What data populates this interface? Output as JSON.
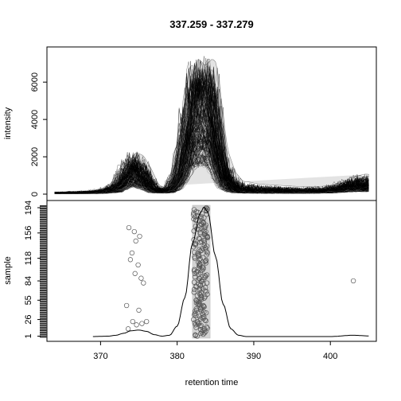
{
  "chart_data": [
    {
      "type": "line",
      "panel": "intensity traces",
      "title": "337.259 - 337.279",
      "ylabel": "intensity",
      "xlim": [
        363,
        406
      ],
      "ylim": [
        0,
        7500
      ],
      "y_ticks": [
        0,
        2000,
        4000,
        6000
      ],
      "n_traces": 194,
      "series_description": "overlaid extracted ion chromatograms, one per sample",
      "envelope": {
        "x": [
          364,
          366,
          368,
          370,
          372,
          373,
          374,
          375,
          376,
          377,
          378,
          379,
          380,
          381,
          381.5,
          382,
          382.5,
          383,
          383.5,
          384,
          384.5,
          385,
          385.5,
          386,
          387,
          388,
          389,
          390,
          392,
          394,
          396,
          398,
          400,
          401,
          402,
          403,
          404,
          405
        ],
        "upper": [
          120,
          150,
          180,
          260,
          700,
          1600,
          2300,
          2100,
          1400,
          500,
          300,
          500,
          1400,
          4500,
          6300,
          7400,
          7300,
          7000,
          7200,
          7400,
          7200,
          5800,
          4000,
          2400,
          1200,
          700,
          650,
          550,
          500,
          450,
          400,
          420,
          500,
          600,
          900,
          1000,
          1100,
          1050
        ],
        "median": [
          60,
          70,
          80,
          100,
          300,
          900,
          1500,
          1200,
          700,
          250,
          150,
          250,
          900,
          2800,
          4000,
          4800,
          5100,
          5400,
          5300,
          5200,
          4600,
          3400,
          2000,
          1000,
          400,
          200,
          160,
          150,
          140,
          130,
          130,
          140,
          200,
          280,
          380,
          420,
          450,
          440
        ]
      }
    },
    {
      "type": "scatter",
      "panel": "sample peaks",
      "xlabel": "retention time",
      "ylabel": "sample",
      "xlim": [
        363,
        406
      ],
      "ylim": [
        -2,
        200
      ],
      "x_ticks": [
        370,
        380,
        390,
        400
      ],
      "y_ticks": [
        1,
        26,
        55,
        84,
        118,
        156,
        194
      ],
      "highlight_region": [
        382,
        384.3
      ],
      "points_left_cluster": [
        [
          373.7,
          164
        ],
        [
          374.4,
          158
        ],
        [
          375.1,
          151
        ],
        [
          374.6,
          144
        ],
        [
          374.1,
          126
        ],
        [
          373.9,
          116
        ],
        [
          374.9,
          108
        ],
        [
          374.5,
          95
        ],
        [
          375.3,
          88
        ],
        [
          375.6,
          81
        ],
        [
          373.4,
          47
        ],
        [
          375.0,
          40
        ],
        [
          374.2,
          23
        ],
        [
          374.7,
          18
        ],
        [
          375.4,
          20
        ],
        [
          376.0,
          23
        ],
        [
          373.6,
          12
        ]
      ],
      "points_right_outlier": [
        [
          403.0,
          84
        ]
      ],
      "main_cluster_x_range": [
        382.1,
        384.0
      ],
      "density_curve": {
        "x": [
          369,
          371,
          372,
          373,
          374,
          375,
          376,
          377,
          378,
          379,
          380,
          381,
          382,
          383,
          383.5,
          384,
          385,
          386,
          387,
          388,
          389,
          390,
          395,
          400,
          403,
          405
        ],
        "y": [
          0.0,
          0.003,
          0.01,
          0.025,
          0.045,
          0.05,
          0.04,
          0.015,
          0.003,
          0.01,
          0.08,
          0.3,
          0.72,
          0.95,
          1.0,
          0.96,
          0.62,
          0.25,
          0.06,
          0.01,
          0.0,
          0.0,
          0.0,
          0.0,
          0.01,
          0.005
        ]
      }
    }
  ]
}
